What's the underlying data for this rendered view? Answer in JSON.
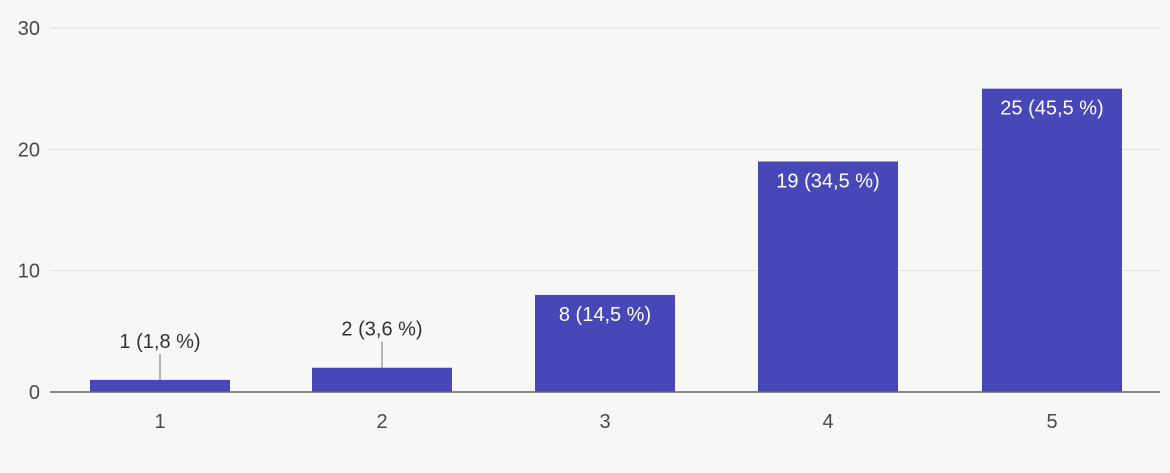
{
  "chart_data": {
    "type": "bar",
    "categories": [
      "1",
      "2",
      "3",
      "4",
      "5"
    ],
    "values": [
      1,
      2,
      8,
      19,
      25
    ],
    "data_labels": [
      "1 (1,8 %)",
      "2 (3,6 %)",
      "8 (14,5 %)",
      "19 (34,5 %)",
      "25 (45,5 %)"
    ],
    "y_ticks": [
      "0",
      "10",
      "20",
      "30"
    ],
    "ylim": [
      0,
      30
    ],
    "title": "",
    "xlabel": "",
    "ylabel": "",
    "grid": true,
    "colors": {
      "bar": "#4747b8",
      "axis": "#666666",
      "grid": "#e0e0e0",
      "label_inside": "#ffffff",
      "label_outside": "#333333"
    }
  }
}
